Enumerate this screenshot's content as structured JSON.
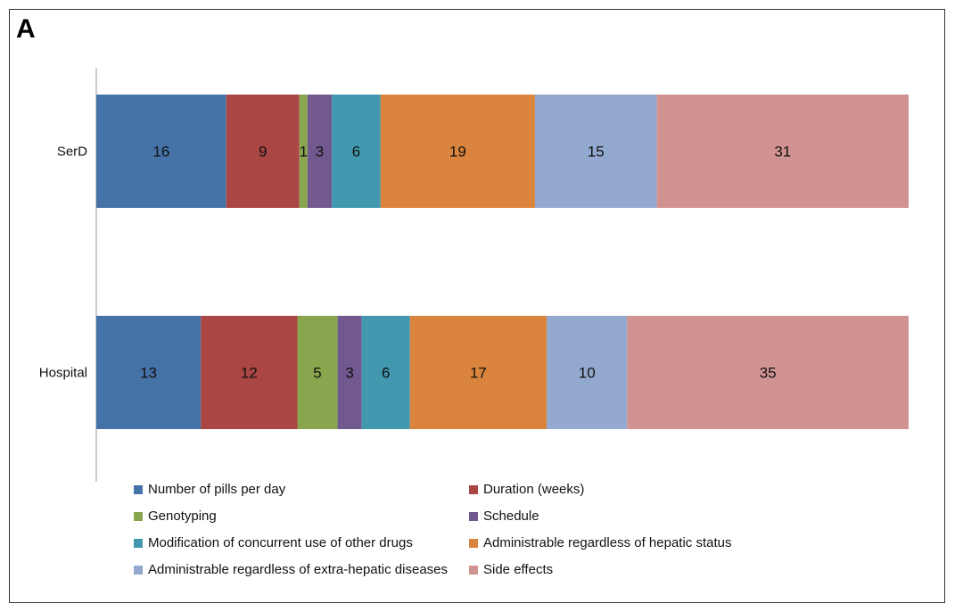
{
  "panel_label": "A",
  "chart_data": {
    "type": "bar",
    "orientation": "horizontal",
    "stacked": true,
    "percent_stacked": true,
    "categories": [
      "SerD",
      "Hospital"
    ],
    "series": [
      {
        "name": "Number of pills per day",
        "color": "#4572A7",
        "values": [
          16,
          13
        ]
      },
      {
        "name": "Duration (weeks)",
        "color": "#AA4643",
        "values": [
          9,
          12
        ]
      },
      {
        "name": "Genotyping",
        "color": "#89A54E",
        "values": [
          1,
          5
        ]
      },
      {
        "name": "Schedule",
        "color": "#71588F",
        "values": [
          3,
          3
        ]
      },
      {
        "name": "Modification of concurrent use of other drugs",
        "color": "#4198AF",
        "values": [
          6,
          6
        ]
      },
      {
        "name": "Administrable regardless of hepatic status",
        "color": "#DB843D",
        "values": [
          19,
          17
        ]
      },
      {
        "name": "Administrable regardless of extra-hepatic diseases",
        "color": "#93A9CF",
        "values": [
          15,
          10
        ]
      },
      {
        "name": "Side effects",
        "color": "#D19392",
        "values": [
          31,
          35
        ]
      }
    ],
    "title": "",
    "xlabel": "",
    "ylabel": "",
    "grid": false,
    "legend_position": "bottom"
  }
}
